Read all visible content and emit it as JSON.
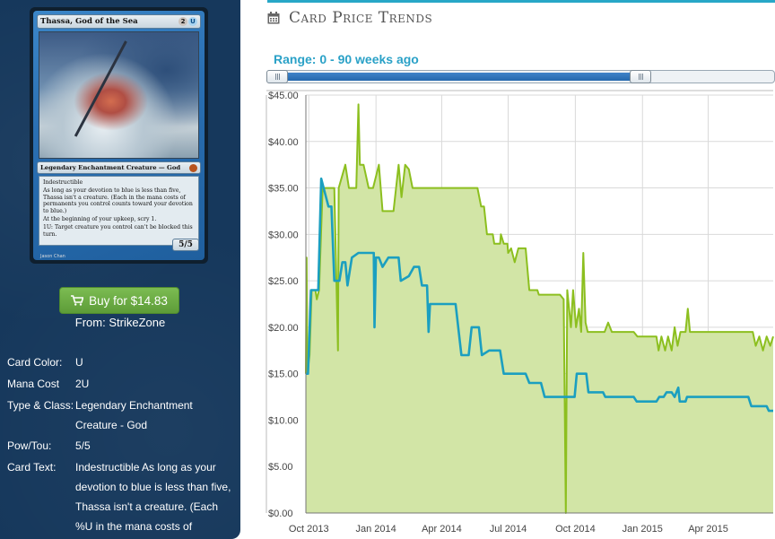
{
  "card": {
    "name": "Thassa, God of the Sea",
    "mana_cost_symbols": [
      "2",
      "U"
    ],
    "type_line": "Legendary Enchantment Creature — God",
    "rules_lines": [
      "Indestructible",
      "As long as your devotion to blue is less than five, Thassa isn't a creature. (Each in the mana costs of permanents you control counts toward your devotion to blue.)",
      "At the beginning of your upkeep, scry 1.",
      "1U: Target creature you control can't be blocked this turn."
    ],
    "pt": "5/5",
    "artist": "Jason Chan"
  },
  "buy": {
    "label": "Buy for $14.83",
    "from": "From: StrikeZone"
  },
  "details": [
    {
      "key": "Card Color:",
      "value": "U"
    },
    {
      "key": "Mana Cost",
      "value": "2U"
    },
    {
      "key": "Type & Class:",
      "value": "Legendary Enchantment Creature - God"
    },
    {
      "key": "Pow/Tou:",
      "value": "5/5"
    },
    {
      "key": "Card Text:",
      "value": "Indestructible As long as your devotion to blue is less than five, Thassa isn't a creature. (Each %U in the mana costs of"
    }
  ],
  "panel": {
    "title": "Card Price Trends",
    "icon": "calendar-icon"
  },
  "range": {
    "label": "Range: 0 - 90 weeks ago",
    "selected_fraction": 0.75
  },
  "colors": {
    "sidebar_bg": "#16385c",
    "buy_green": "#6aaa43",
    "accent_blue": "#2aa1c7",
    "series_green": "#8cbf1f",
    "area_green": "#d2e5a6",
    "series_blue": "#1b9fc0"
  },
  "chart_data": {
    "type": "line",
    "ylim": [
      0,
      45
    ],
    "ytick_values": [
      0,
      5,
      10,
      15,
      20,
      25,
      30,
      35,
      40,
      45
    ],
    "ytick_labels": [
      "$0.00",
      "$5.00",
      "$10.00",
      "$15.00",
      "$20.00",
      "$25.00",
      "$30.00",
      "$35.00",
      "$40.00",
      "$45.00"
    ],
    "xlim": [
      "2013-09-27",
      "2015-06-29"
    ],
    "xticks": [
      {
        "date": "2013-10-01",
        "label": "Oct 2013"
      },
      {
        "date": "2014-01-01",
        "label": "Jan 2014"
      },
      {
        "date": "2014-04-01",
        "label": "Apr 2014"
      },
      {
        "date": "2014-07-01",
        "label": "Jul 2014"
      },
      {
        "date": "2014-10-01",
        "label": "Oct 2014"
      },
      {
        "date": "2015-01-01",
        "label": "Jan 2015"
      },
      {
        "date": "2015-04-01",
        "label": "Apr 2015"
      }
    ],
    "grid": true,
    "series": [
      {
        "color": "#8cbf1f",
        "fill": true,
        "points": [
          [
            "2013-09-27",
            15.0
          ],
          [
            "2013-09-28",
            27.5
          ],
          [
            "2013-09-29",
            15.0
          ],
          [
            "2013-10-02",
            17.0
          ],
          [
            "2013-10-05",
            24.0
          ],
          [
            "2013-10-10",
            24.0
          ],
          [
            "2013-10-12",
            23.0
          ],
          [
            "2013-10-15",
            24.0
          ],
          [
            "2013-10-20",
            35.0
          ],
          [
            "2013-11-05",
            35.0
          ],
          [
            "2013-11-10",
            17.5
          ],
          [
            "2013-11-11",
            35.0
          ],
          [
            "2013-11-20",
            37.5
          ],
          [
            "2013-11-25",
            35.0
          ],
          [
            "2013-12-05",
            35.0
          ],
          [
            "2013-12-08",
            44.0
          ],
          [
            "2013-12-10",
            37.5
          ],
          [
            "2013-12-15",
            37.5
          ],
          [
            "2013-12-22",
            35.0
          ],
          [
            "2013-12-28",
            35.0
          ],
          [
            "2014-01-05",
            37.5
          ],
          [
            "2014-01-10",
            32.5
          ],
          [
            "2014-01-25",
            32.5
          ],
          [
            "2014-02-01",
            37.5
          ],
          [
            "2014-02-05",
            34.0
          ],
          [
            "2014-02-10",
            37.5
          ],
          [
            "2014-02-15",
            37.0
          ],
          [
            "2014-02-20",
            35.0
          ],
          [
            "2014-05-20",
            35.0
          ],
          [
            "2014-05-25",
            33.0
          ],
          [
            "2014-05-29",
            33.0
          ],
          [
            "2014-06-02",
            30.0
          ],
          [
            "2014-06-10",
            30.0
          ],
          [
            "2014-06-12",
            29.0
          ],
          [
            "2014-06-20",
            29.0
          ],
          [
            "2014-06-21",
            30.0
          ],
          [
            "2014-06-25",
            29.0
          ],
          [
            "2014-06-30",
            29.0
          ],
          [
            "2014-07-01",
            28.0
          ],
          [
            "2014-07-05",
            28.5
          ],
          [
            "2014-07-10",
            27.0
          ],
          [
            "2014-07-15",
            28.5
          ],
          [
            "2014-07-25",
            28.5
          ],
          [
            "2014-07-30",
            24.0
          ],
          [
            "2014-08-10",
            24.0
          ],
          [
            "2014-08-12",
            23.5
          ],
          [
            "2014-09-10",
            23.5
          ],
          [
            "2014-09-15",
            23.0
          ],
          [
            "2014-09-18",
            0.0
          ],
          [
            "2014-09-20",
            24.0
          ],
          [
            "2014-09-25",
            20.0
          ],
          [
            "2014-09-28",
            24.0
          ],
          [
            "2014-10-02",
            20.0
          ],
          [
            "2014-10-06",
            22.0
          ],
          [
            "2014-10-09",
            19.5
          ],
          [
            "2014-10-12",
            28.0
          ],
          [
            "2014-10-15",
            20.5
          ],
          [
            "2014-10-18",
            19.5
          ],
          [
            "2014-11-10",
            19.5
          ],
          [
            "2014-11-15",
            20.5
          ],
          [
            "2014-11-20",
            19.5
          ],
          [
            "2014-12-20",
            19.5
          ],
          [
            "2014-12-25",
            19.0
          ],
          [
            "2015-01-20",
            19.0
          ],
          [
            "2015-01-23",
            17.5
          ],
          [
            "2015-01-27",
            19.0
          ],
          [
            "2015-02-01",
            17.5
          ],
          [
            "2015-02-05",
            19.0
          ],
          [
            "2015-02-10",
            17.5
          ],
          [
            "2015-02-14",
            20.0
          ],
          [
            "2015-02-18",
            18.0
          ],
          [
            "2015-02-22",
            19.5
          ],
          [
            "2015-03-01",
            19.5
          ],
          [
            "2015-03-04",
            22.0
          ],
          [
            "2015-03-07",
            19.5
          ],
          [
            "2015-06-01",
            19.5
          ],
          [
            "2015-06-05",
            18.0
          ],
          [
            "2015-06-10",
            19.0
          ],
          [
            "2015-06-15",
            17.5
          ],
          [
            "2015-06-20",
            19.0
          ],
          [
            "2015-06-25",
            18.0
          ],
          [
            "2015-06-29",
            19.0
          ]
        ]
      },
      {
        "color": "#1b9fc0",
        "fill": false,
        "points": [
          [
            "2013-09-27",
            15.0
          ],
          [
            "2013-09-30",
            15.0
          ],
          [
            "2013-10-04",
            24.0
          ],
          [
            "2013-10-14",
            24.0
          ],
          [
            "2013-10-18",
            36.0
          ],
          [
            "2013-10-28",
            33.0
          ],
          [
            "2013-11-01",
            33.0
          ],
          [
            "2013-11-05",
            25.0
          ],
          [
            "2013-11-12",
            25.0
          ],
          [
            "2013-11-16",
            27.0
          ],
          [
            "2013-11-20",
            27.0
          ],
          [
            "2013-11-23",
            24.5
          ],
          [
            "2013-11-26",
            26.0
          ],
          [
            "2013-11-29",
            27.5
          ],
          [
            "2013-12-08",
            28.0
          ],
          [
            "2013-12-29",
            28.0
          ],
          [
            "2013-12-30",
            20.0
          ],
          [
            "2014-01-01",
            27.5
          ],
          [
            "2014-01-05",
            27.5
          ],
          [
            "2014-01-10",
            26.5
          ],
          [
            "2014-01-18",
            27.5
          ],
          [
            "2014-02-01",
            27.5
          ],
          [
            "2014-02-04",
            25.0
          ],
          [
            "2014-02-15",
            25.5
          ],
          [
            "2014-02-22",
            26.5
          ],
          [
            "2014-03-01",
            26.5
          ],
          [
            "2014-03-05",
            24.5
          ],
          [
            "2014-03-12",
            24.5
          ],
          [
            "2014-03-14",
            19.5
          ],
          [
            "2014-03-16",
            22.5
          ],
          [
            "2014-04-20",
            22.5
          ],
          [
            "2014-04-28",
            17.0
          ],
          [
            "2014-05-08",
            17.0
          ],
          [
            "2014-05-12",
            20.0
          ],
          [
            "2014-05-22",
            20.0
          ],
          [
            "2014-05-26",
            17.0
          ],
          [
            "2014-06-05",
            17.5
          ],
          [
            "2014-06-20",
            17.5
          ],
          [
            "2014-06-25",
            15.0
          ],
          [
            "2014-07-25",
            15.0
          ],
          [
            "2014-07-30",
            14.0
          ],
          [
            "2014-08-15",
            14.0
          ],
          [
            "2014-08-20",
            12.5
          ],
          [
            "2014-09-10",
            12.5
          ],
          [
            "2014-09-30",
            12.5
          ],
          [
            "2014-10-03",
            15.0
          ],
          [
            "2014-10-16",
            15.0
          ],
          [
            "2014-10-19",
            13.0
          ],
          [
            "2014-11-08",
            13.0
          ],
          [
            "2014-11-11",
            12.5
          ],
          [
            "2014-12-20",
            12.5
          ],
          [
            "2014-12-24",
            12.0
          ],
          [
            "2015-01-20",
            12.0
          ],
          [
            "2015-01-24",
            12.5
          ],
          [
            "2015-01-30",
            12.5
          ],
          [
            "2015-02-03",
            13.0
          ],
          [
            "2015-02-10",
            13.0
          ],
          [
            "2015-02-14",
            12.5
          ],
          [
            "2015-02-19",
            13.5
          ],
          [
            "2015-02-21",
            12.0
          ],
          [
            "2015-03-01",
            12.0
          ],
          [
            "2015-03-03",
            12.5
          ],
          [
            "2015-05-26",
            12.5
          ],
          [
            "2015-05-30",
            11.5
          ],
          [
            "2015-06-20",
            11.5
          ],
          [
            "2015-06-23",
            11.0
          ],
          [
            "2015-06-29",
            11.0
          ]
        ]
      }
    ]
  }
}
